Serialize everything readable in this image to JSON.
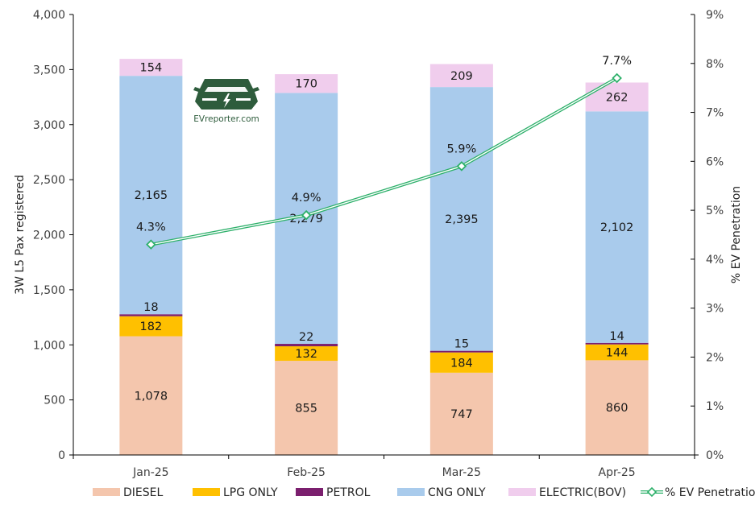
{
  "chart_data": {
    "type": "bar",
    "stacked": true,
    "title": "",
    "xlabel": "",
    "ylabel": "3W L5 Pax registered",
    "ylabel_right": "% EV Penetration",
    "ylim": [
      0,
      4000
    ],
    "yticks": [
      "0",
      "500",
      "1,000",
      "1,500",
      "2,000",
      "2,500",
      "3,000",
      "3,500",
      "4,000"
    ],
    "ytick_values": [
      0,
      500,
      1000,
      1500,
      2000,
      2500,
      3000,
      3500,
      4000
    ],
    "ylim_right": [
      0,
      9
    ],
    "yticks_right": [
      "0%",
      "1%",
      "2%",
      "3%",
      "4%",
      "5%",
      "6%",
      "7%",
      "8%",
      "9%"
    ],
    "ytick_values_right": [
      0,
      1,
      2,
      3,
      4,
      5,
      6,
      7,
      8,
      9
    ],
    "categories": [
      "Jan-25",
      "Feb-25",
      "Mar-25",
      "Apr-25"
    ],
    "series": [
      {
        "name": "DIESEL",
        "color": "#F4C6AD",
        "values": [
          1078,
          855,
          747,
          860
        ],
        "labels": [
          "1,078",
          "855",
          "747",
          "860"
        ]
      },
      {
        "name": "LPG ONLY",
        "color": "#FFC000",
        "values": [
          182,
          132,
          184,
          144
        ],
        "labels": [
          "182",
          "132",
          "184",
          "144"
        ]
      },
      {
        "name": "PETROL",
        "color": "#7B1F6E",
        "values": [
          18,
          22,
          15,
          14
        ],
        "labels": [
          "18",
          "22",
          "15",
          "14"
        ]
      },
      {
        "name": "CNG ONLY",
        "color": "#A9CBEC",
        "values": [
          2165,
          2279,
          2395,
          2102
        ],
        "labels": [
          "2,165",
          "2,279",
          "2,395",
          "2,102"
        ]
      },
      {
        "name": "ELECTRIC(BOV)",
        "color": "#F0CDED",
        "values": [
          154,
          170,
          209,
          262
        ],
        "labels": [
          "154",
          "170",
          "209",
          "262"
        ]
      }
    ],
    "line_series": {
      "name": "% EV Penetration",
      "axis": "right",
      "color": "#2DB06A",
      "values": [
        4.3,
        4.9,
        5.9,
        7.7
      ],
      "labels": [
        "4.3%",
        "4.9%",
        "5.9%",
        "7.7%"
      ]
    },
    "legend_position": "bottom",
    "grid": false
  },
  "watermark": {
    "text": "EVreporter.com",
    "icon": "car-lightning-icon",
    "color": "#2E5C3C"
  }
}
